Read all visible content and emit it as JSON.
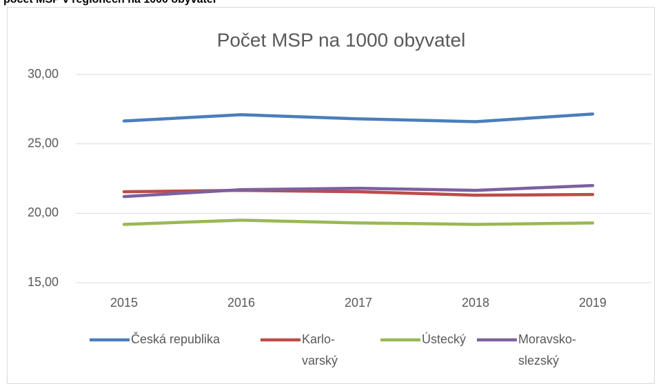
{
  "heading": "počet MSP v regionech na 1000 obyvatel",
  "chart_data": {
    "type": "line",
    "title": "Počet MSP na 1000 obyvatel",
    "categories": [
      "2015",
      "2016",
      "2017",
      "2018",
      "2019"
    ],
    "series": [
      {
        "name": "Česká republika",
        "color": "#4a7ebb",
        "values": [
          26.65,
          27.1,
          26.8,
          26.6,
          27.15
        ]
      },
      {
        "name": "Karlo-varský",
        "color": "#be4b48",
        "values": [
          21.55,
          21.65,
          21.55,
          21.3,
          21.35
        ]
      },
      {
        "name": "Ústecký",
        "color": "#98b954",
        "values": [
          19.2,
          19.5,
          19.3,
          19.2,
          19.3
        ]
      },
      {
        "name": "Moravsko-slezský",
        "color": "#7d60a0",
        "values": [
          21.2,
          21.7,
          21.8,
          21.65,
          22.0
        ]
      }
    ],
    "ylim": [
      15,
      30
    ],
    "yticks": [
      {
        "value": 15,
        "label": "15,00"
      },
      {
        "value": 20,
        "label": "20,00"
      },
      {
        "value": 25,
        "label": "25,00"
      },
      {
        "value": 30,
        "label": "30,00"
      }
    ],
    "grid": true,
    "legend": "bottom"
  }
}
